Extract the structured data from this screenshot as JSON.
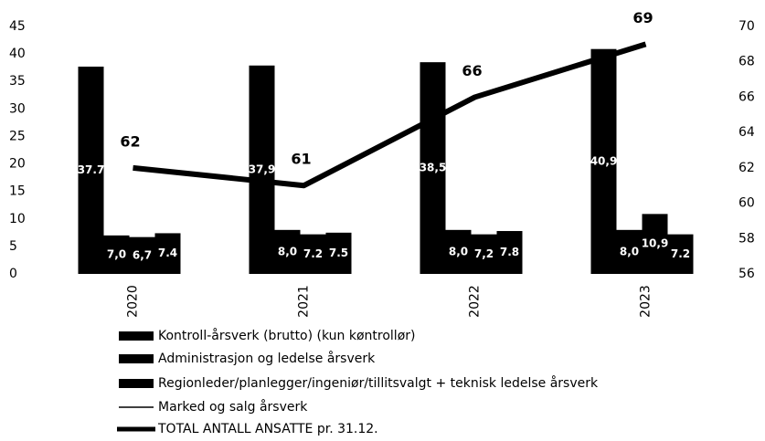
{
  "chart_data": {
    "type": "bar-line",
    "categories": [
      "2020",
      "2021",
      "2022",
      "2023"
    ],
    "series": [
      {
        "name": "Kontroll-årsverk (brutto) (kun køntrollør)",
        "color": "#000000",
        "values": [
          37.7,
          37.9,
          38.5,
          40.9
        ],
        "value_labels": [
          "37.7",
          "37,9",
          "38,5",
          "40,9"
        ]
      },
      {
        "name": "Administrasjon og ledelse årsverk",
        "color": "#000000",
        "values": [
          7.0,
          8.0,
          8.0,
          8.0
        ],
        "value_labels": [
          "7,0",
          "8,0",
          "8,0",
          "8,0"
        ]
      },
      {
        "name": "Regionleder/planlegger/ingeniør/tillitsvalgt + teknisk ledelse årsverk",
        "color": "#000000",
        "values": [
          6.7,
          7.2,
          7.2,
          10.9
        ],
        "value_labels": [
          "6,7",
          "7.2",
          "7,2",
          "10,9"
        ]
      },
      {
        "name": "Marked og salg årsverk",
        "color": "#000000",
        "values": [
          7.4,
          7.5,
          7.8,
          7.2
        ]
      },
      {
        "name": "TOTAL ANTALL ANSATTE pr. 31.12.",
        "color": "#000000",
        "axis": "y2",
        "kind": "line",
        "values": [
          62,
          61,
          66,
          69
        ]
      }
    ],
    "ylim": [
      0,
      45
    ],
    "yticks": [
      0,
      5,
      10,
      15,
      20,
      25,
      30,
      35,
      40,
      45
    ],
    "y2lim": [
      56,
      70
    ],
    "y2ticks": [
      56,
      58,
      60,
      62,
      64,
      66,
      68,
      70
    ]
  }
}
